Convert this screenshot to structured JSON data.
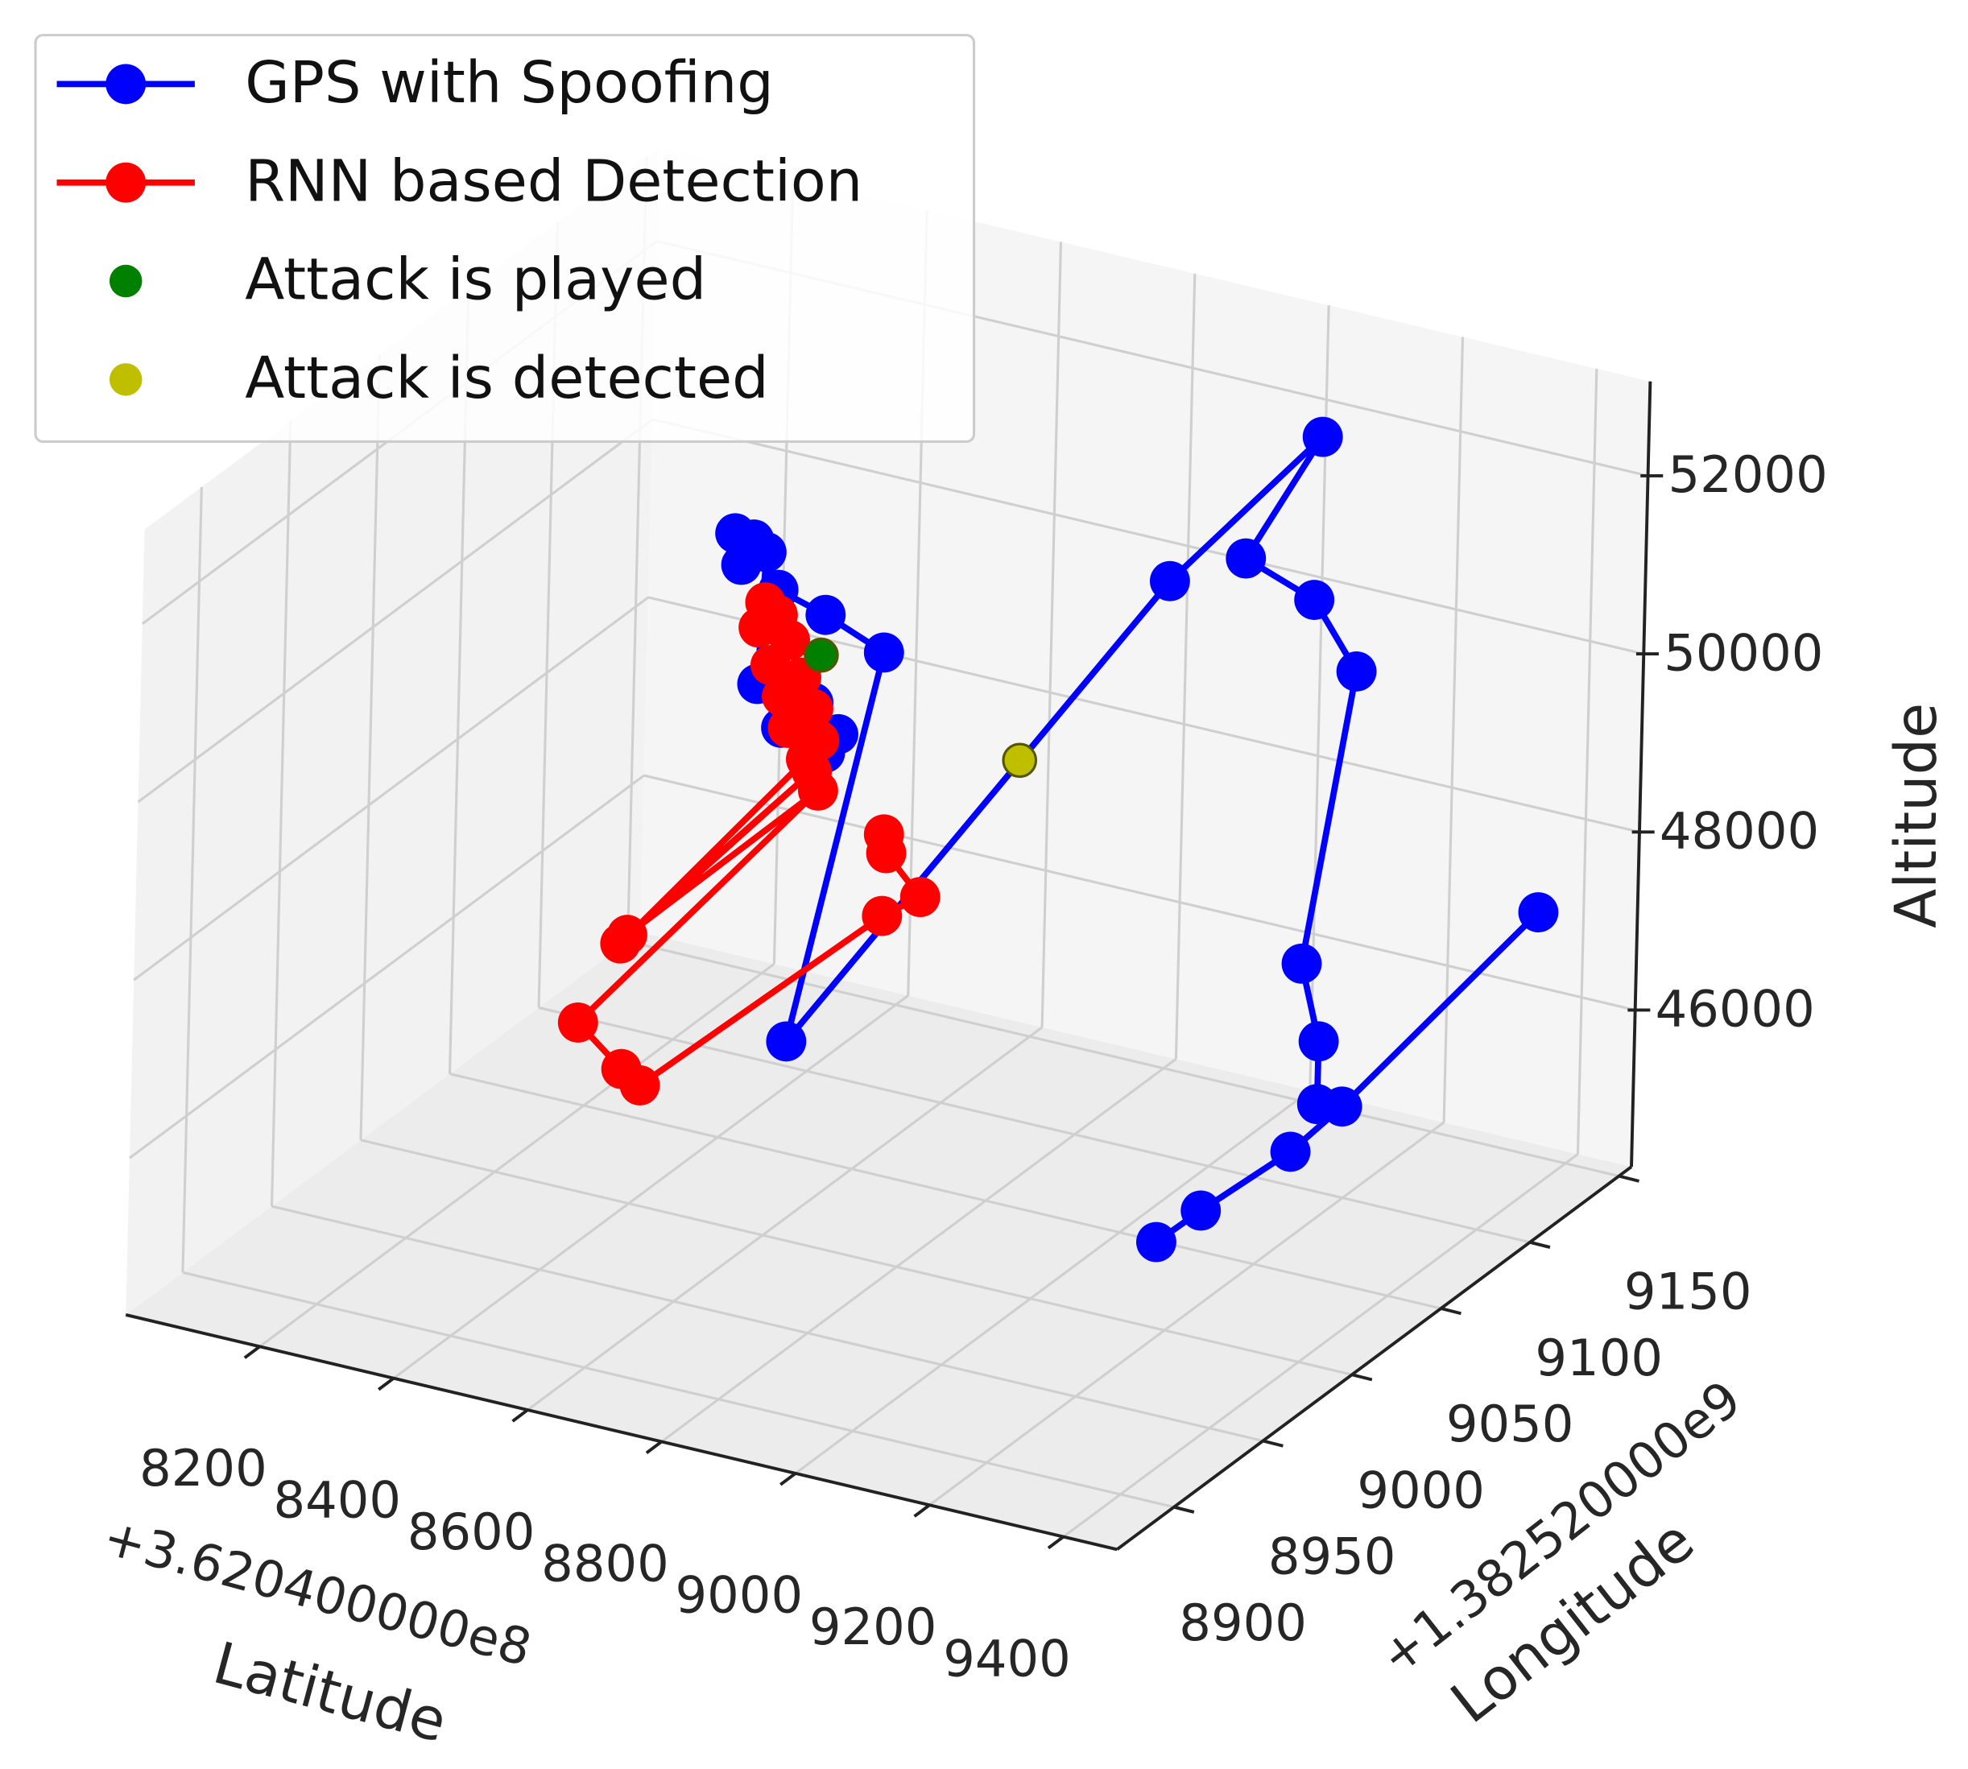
{
  "chart_data": {
    "type": "line3d",
    "xlabel": "Latitude",
    "ylabel": "Longitude",
    "zlabel": "Altitude",
    "x_offset_label": "+3.620400000e8",
    "y_offset_label": "+1.382520000e9",
    "xlim": [
      8000,
      9480
    ],
    "ylim": [
      8868,
      9157
    ],
    "zlim": [
      44240,
      53060
    ],
    "xticks": [
      8200,
      8400,
      8600,
      8800,
      9000,
      9200,
      9400
    ],
    "yticks": [
      8900,
      8950,
      9000,
      9050,
      9100,
      9150
    ],
    "zticks": [
      46000,
      48000,
      50000,
      52000
    ],
    "grid": true,
    "legend": "upper left",
    "series": [
      {
        "name": "GPS with Spoofing",
        "color": "#0000ff",
        "style": "line",
        "x": [
          9138,
          9203,
          9334,
          9409,
          9434,
          null,
          9372,
          9372,
          9344,
          9415,
          9220,
          9117,
          9097,
          9005,
          8841,
          8583,
          8495,
          8424,
          8386,
          8358,
          8368,
          8405,
          8396,
          8433,
          8480,
          8518,
          8499
        ],
        "y": [
          9018,
          9018,
          9018,
          9018,
          9118,
          null,
          9018,
          9018,
          9018,
          9018,
          9068,
          9068,
          9118,
          9068,
          8918,
          9068,
          9068,
          9068,
          9068,
          9068,
          9068,
          9068,
          9068,
          9068,
          9068,
          9068,
          9068
        ],
        "z": [
          44853,
          45322,
          46216,
          46857,
          47596,
          null,
          46819,
          47523,
          48346,
          51754,
          51467,
          51749,
          52335,
          51295,
          48064,
          49742,
          50008,
          50163,
          50660,
          50680,
          50344,
          50552,
          49056,
          48630,
          48995,
          48709,
          48466
        ]
      },
      {
        "name": "RNN based Detection",
        "color": "#ff0000",
        "style": "line",
        "x": [
          8405,
          8424,
          8396,
          8443,
          8415,
          8461,
          8433,
          8480,
          8443,
          8490,
          8471,
          8721,
          8480,
          8731,
          8490,
          8661,
          8727,
          8755,
          8849,
          8905,
          8853,
          8849
        ],
        "y": [
          9068,
          9068,
          9068,
          9068,
          9068,
          9068,
          9068,
          9068,
          9068,
          9068,
          9068,
          8868,
          9068,
          8868,
          9068,
          8868,
          8868,
          8868,
          8968,
          8968,
          8968,
          8968
        ],
        "z": [
          49988,
          49881,
          49690,
          49633,
          49301,
          49243,
          48982,
          48925,
          48647,
          48589,
          48344,
          49694,
          48220,
          49808,
          48026,
          48699,
          48295,
          48161,
          48744,
          49056,
          49456,
          49660
        ]
      },
      {
        "name": "Attack is played",
        "color": "#008000",
        "style": "scatter",
        "x": [
          8490
        ],
        "y": [
          9068
        ],
        "z": [
          49547
        ]
      },
      {
        "name": "Attack is detected",
        "color": "#bfbf00",
        "style": "scatter",
        "x": [
          8918
        ],
        "y": [
          9018
        ],
        "z": [
          49871
        ]
      }
    ]
  }
}
